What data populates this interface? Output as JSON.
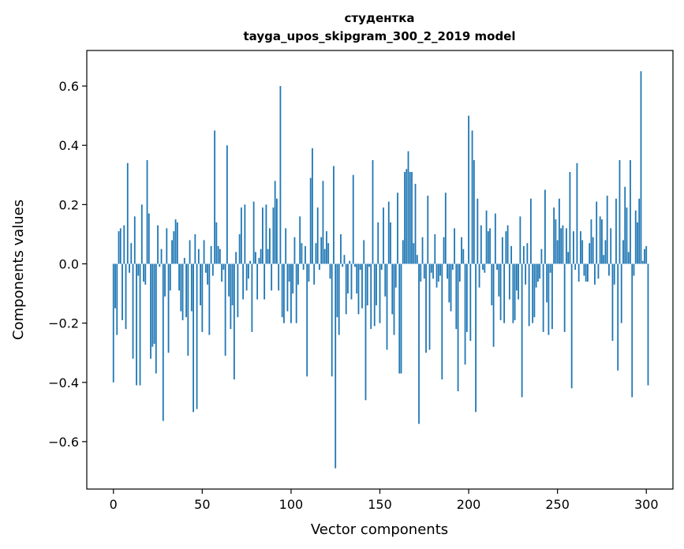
{
  "chart_data": {
    "type": "bar",
    "title_line1": "студентка",
    "title_line2": "tayga_upos_skipgram_300_2_2019 model",
    "xlabel": "Vector components",
    "ylabel": "Components values",
    "xlim": [
      -15,
      315
    ],
    "ylim": [
      -0.76,
      0.72
    ],
    "xticks": [
      0,
      50,
      100,
      150,
      200,
      250,
      300
    ],
    "xtick_labels": [
      "0",
      "50",
      "100",
      "150",
      "200",
      "250",
      "300"
    ],
    "yticks": [
      -0.6,
      -0.4,
      -0.2,
      0.0,
      0.2,
      0.4,
      0.6
    ],
    "ytick_labels": [
      "−0.6",
      "−0.4",
      "−0.2",
      "0.0",
      "0.2",
      "0.4",
      "0.6"
    ],
    "bar_color": "#1f77b4",
    "values": [
      -0.4,
      -0.15,
      -0.24,
      0.11,
      0.12,
      -0.19,
      0.13,
      -0.22,
      0.34,
      -0.03,
      0.07,
      -0.32,
      0.16,
      -0.41,
      -0.04,
      -0.41,
      0.2,
      -0.06,
      -0.07,
      0.35,
      0.17,
      -0.32,
      -0.28,
      -0.27,
      -0.37,
      0.13,
      -0.01,
      0.05,
      -0.53,
      -0.11,
      0.12,
      -0.3,
      -0.09,
      0.08,
      0.11,
      0.15,
      0.14,
      -0.09,
      -0.16,
      -0.19,
      0.02,
      -0.18,
      -0.31,
      0.08,
      -0.16,
      -0.5,
      0.1,
      -0.49,
      0.05,
      -0.14,
      -0.23,
      0.08,
      -0.03,
      -0.07,
      -0.24,
      0.06,
      -0.04,
      0.45,
      0.14,
      0.06,
      0.05,
      -0.06,
      -0.02,
      -0.31,
      0.4,
      -0.11,
      -0.22,
      -0.14,
      -0.39,
      0.04,
      -0.18,
      0.1,
      0.19,
      -0.12,
      0.2,
      -0.09,
      -0.05,
      0.01,
      -0.23,
      0.21,
      0.04,
      -0.12,
      0.02,
      0.05,
      0.19,
      -0.12,
      0.2,
      0.05,
      0.12,
      -0.09,
      0.19,
      0.28,
      0.22,
      -0.09,
      0.6,
      -0.18,
      -0.2,
      0.12,
      -0.16,
      -0.06,
      -0.2,
      -0.1,
      0.09,
      -0.2,
      -0.07,
      0.16,
      0.07,
      -0.02,
      0.06,
      -0.38,
      -0.06,
      0.29,
      0.39,
      -0.07,
      0.07,
      0.19,
      -0.02,
      0.09,
      0.28,
      0.05,
      0.11,
      0.07,
      -0.05,
      -0.38,
      0.33,
      -0.69,
      -0.18,
      -0.24,
      0.1,
      -0.01,
      0.03,
      -0.17,
      -0.1,
      0.01,
      -0.12,
      0.3,
      -0.01,
      -0.1,
      -0.17,
      -0.02,
      -0.15,
      0.08,
      -0.46,
      -0.14,
      -0.01,
      -0.22,
      0.35,
      -0.21,
      -0.14,
      0.14,
      -0.2,
      -0.02,
      0.19,
      -0.11,
      -0.29,
      0.21,
      0.14,
      -0.17,
      -0.24,
      -0.08,
      0.24,
      -0.37,
      -0.37,
      0.08,
      0.31,
      0.32,
      0.38,
      0.31,
      0.31,
      0.07,
      0.27,
      0.03,
      -0.54,
      -0.06,
      0.09,
      -0.05,
      -0.3,
      0.23,
      -0.29,
      -0.03,
      -0.05,
      0.1,
      -0.08,
      -0.06,
      -0.04,
      -0.39,
      0.09,
      0.24,
      -0.05,
      -0.13,
      -0.16,
      -0.02,
      0.12,
      -0.22,
      -0.43,
      -0.06,
      0.09,
      0.05,
      -0.34,
      -0.23,
      0.5,
      -0.26,
      0.45,
      0.35,
      -0.5,
      0.22,
      -0.08,
      0.13,
      -0.02,
      -0.03,
      0.18,
      0.11,
      0.12,
      -0.14,
      -0.28,
      0.17,
      -0.02,
      -0.11,
      -0.19,
      0.09,
      -0.2,
      0.11,
      0.13,
      -0.12,
      0.06,
      -0.2,
      -0.19,
      -0.09,
      -0.12,
      0.16,
      -0.45,
      0.06,
      -0.07,
      0.07,
      -0.21,
      0.22,
      -0.2,
      -0.18,
      -0.08,
      -0.06,
      -0.05,
      0.05,
      -0.23,
      0.25,
      -0.13,
      -0.24,
      -0.03,
      -0.22,
      0.19,
      0.15,
      0.08,
      0.22,
      0.12,
      0.13,
      -0.23,
      0.12,
      0.04,
      0.31,
      -0.42,
      0.11,
      -0.02,
      0.34,
      -0.06,
      0.11,
      0.08,
      -0.04,
      -0.06,
      -0.06,
      0.07,
      0.15,
      0.09,
      -0.07,
      0.21,
      -0.05,
      0.16,
      0.15,
      0.03,
      0.08,
      0.23,
      -0.04,
      0.12,
      -0.26,
      -0.07,
      0.22,
      -0.36,
      0.35,
      -0.2,
      0.08,
      0.26,
      0.19,
      0.04,
      0.35,
      -0.45,
      -0.04,
      0.18,
      0.14,
      0.22,
      0.65,
      0.01,
      0.05,
      0.06,
      -0.41
    ]
  }
}
